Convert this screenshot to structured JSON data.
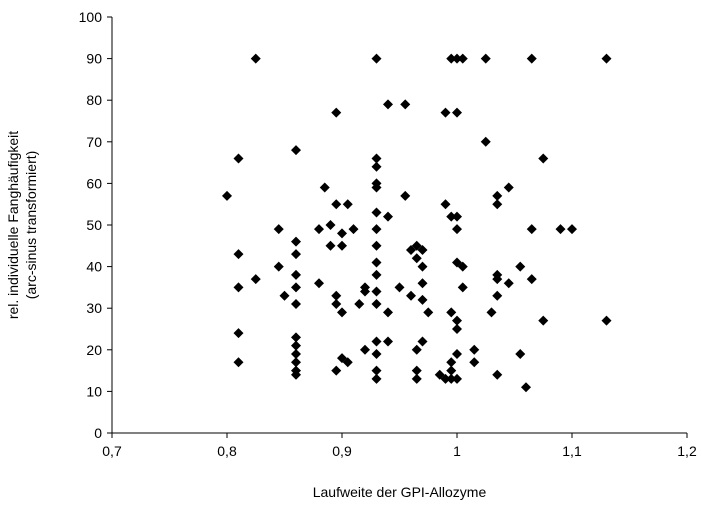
{
  "chart_data": {
    "type": "scatter",
    "title": "",
    "xlabel": "Laufweite der GPI-Allozyme",
    "ylabel_lines": [
      "rel. individuelle Fanghäufigkeit",
      "(arc-sinus transformiert)"
    ],
    "xlim": [
      0.7,
      1.2
    ],
    "ylim": [
      0,
      100
    ],
    "xticks": [
      "0,7",
      "0,8",
      "0,9",
      "1",
      "1,1",
      "1,2"
    ],
    "yticks": [
      "0",
      "10",
      "20",
      "30",
      "40",
      "50",
      "60",
      "70",
      "80",
      "90",
      "100"
    ],
    "grid": false,
    "legend": "none",
    "marker": "diamond",
    "marker_color": "#000000",
    "points": [
      [
        0.8,
        57
      ],
      [
        0.81,
        66
      ],
      [
        0.81,
        43
      ],
      [
        0.81,
        35
      ],
      [
        0.81,
        24
      ],
      [
        0.81,
        17
      ],
      [
        0.825,
        90
      ],
      [
        0.825,
        37
      ],
      [
        0.845,
        49
      ],
      [
        0.845,
        40
      ],
      [
        0.85,
        33
      ],
      [
        0.86,
        68
      ],
      [
        0.86,
        46
      ],
      [
        0.86,
        43
      ],
      [
        0.86,
        38
      ],
      [
        0.86,
        35
      ],
      [
        0.86,
        31
      ],
      [
        0.86,
        23
      ],
      [
        0.86,
        21
      ],
      [
        0.86,
        19
      ],
      [
        0.86,
        17
      ],
      [
        0.86,
        15
      ],
      [
        0.86,
        14
      ],
      [
        0.88,
        49
      ],
      [
        0.88,
        36
      ],
      [
        0.885,
        59
      ],
      [
        0.89,
        50
      ],
      [
        0.89,
        45
      ],
      [
        0.895,
        77
      ],
      [
        0.895,
        55
      ],
      [
        0.895,
        33
      ],
      [
        0.895,
        31
      ],
      [
        0.895,
        15
      ],
      [
        0.9,
        48
      ],
      [
        0.9,
        45
      ],
      [
        0.9,
        29
      ],
      [
        0.9,
        18
      ],
      [
        0.905,
        55
      ],
      [
        0.905,
        17
      ],
      [
        0.91,
        49
      ],
      [
        0.915,
        31
      ],
      [
        0.92,
        35
      ],
      [
        0.92,
        34
      ],
      [
        0.92,
        20
      ],
      [
        0.93,
        90
      ],
      [
        0.93,
        66
      ],
      [
        0.93,
        64
      ],
      [
        0.93,
        60
      ],
      [
        0.93,
        59
      ],
      [
        0.93,
        53
      ],
      [
        0.93,
        49
      ],
      [
        0.93,
        45
      ],
      [
        0.93,
        41
      ],
      [
        0.93,
        38
      ],
      [
        0.93,
        34
      ],
      [
        0.93,
        31
      ],
      [
        0.93,
        22
      ],
      [
        0.93,
        19
      ],
      [
        0.93,
        15
      ],
      [
        0.93,
        13
      ],
      [
        0.94,
        79
      ],
      [
        0.94,
        52
      ],
      [
        0.94,
        29
      ],
      [
        0.94,
        22
      ],
      [
        0.95,
        35
      ],
      [
        0.955,
        79
      ],
      [
        0.955,
        57
      ],
      [
        0.96,
        44
      ],
      [
        0.96,
        33
      ],
      [
        0.965,
        45
      ],
      [
        0.965,
        42
      ],
      [
        0.965,
        20
      ],
      [
        0.965,
        15
      ],
      [
        0.965,
        13
      ],
      [
        0.97,
        44
      ],
      [
        0.97,
        40
      ],
      [
        0.97,
        36
      ],
      [
        0.97,
        32
      ],
      [
        0.97,
        22
      ],
      [
        0.975,
        29
      ],
      [
        0.985,
        14
      ],
      [
        0.99,
        77
      ],
      [
        0.99,
        55
      ],
      [
        0.99,
        13
      ],
      [
        0.995,
        90
      ],
      [
        0.995,
        52
      ],
      [
        0.995,
        29
      ],
      [
        0.995,
        17
      ],
      [
        0.995,
        15
      ],
      [
        0.995,
        13
      ],
      [
        1.0,
        90
      ],
      [
        1.0,
        77
      ],
      [
        1.0,
        52
      ],
      [
        1.0,
        49
      ],
      [
        1.0,
        41
      ],
      [
        1.0,
        27
      ],
      [
        1.0,
        25
      ],
      [
        1.0,
        19
      ],
      [
        1.0,
        13
      ],
      [
        1.005,
        90
      ],
      [
        1.005,
        40
      ],
      [
        1.005,
        35
      ],
      [
        1.015,
        17
      ],
      [
        1.015,
        20
      ],
      [
        1.025,
        90
      ],
      [
        1.025,
        70
      ],
      [
        1.03,
        29
      ],
      [
        1.035,
        57
      ],
      [
        1.035,
        55
      ],
      [
        1.035,
        38
      ],
      [
        1.035,
        37
      ],
      [
        1.035,
        33
      ],
      [
        1.035,
        14
      ],
      [
        1.045,
        59
      ],
      [
        1.045,
        36
      ],
      [
        1.055,
        40
      ],
      [
        1.055,
        19
      ],
      [
        1.06,
        11
      ],
      [
        1.065,
        90
      ],
      [
        1.065,
        49
      ],
      [
        1.065,
        37
      ],
      [
        1.075,
        66
      ],
      [
        1.075,
        27
      ],
      [
        1.09,
        49
      ],
      [
        1.1,
        49
      ],
      [
        1.13,
        90
      ],
      [
        1.13,
        27
      ]
    ]
  }
}
